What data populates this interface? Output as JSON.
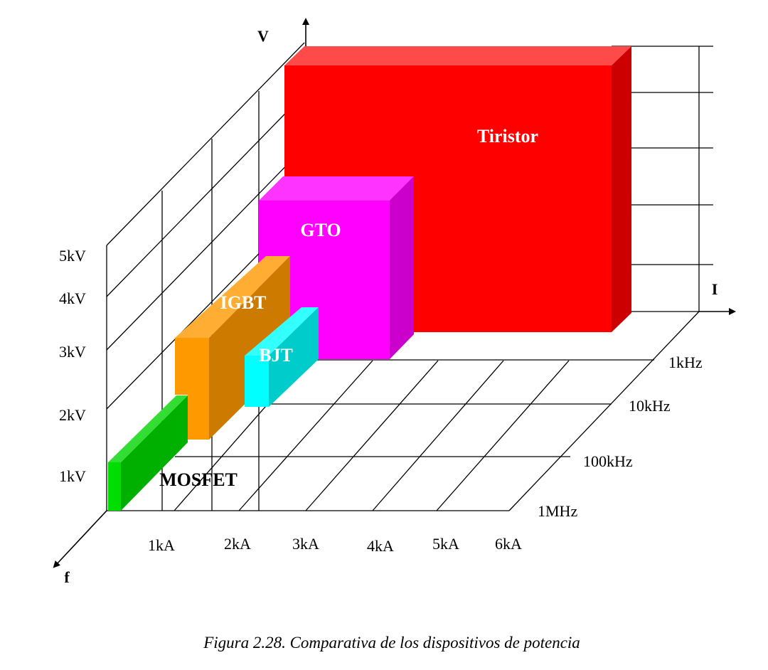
{
  "axes": {
    "v_label": "V",
    "i_label": "I",
    "f_label": "f"
  },
  "voltage_ticks": [
    "1kV",
    "2kV",
    "3kV",
    "4kV",
    "5kV"
  ],
  "current_ticks": [
    "1kA",
    "2kA",
    "3kA",
    "4kA",
    "5kA",
    "6kA"
  ],
  "frequency_ticks": [
    "1kHz",
    "10kHz",
    "100kHz",
    "1MHz"
  ],
  "devices": [
    {
      "name": "Tiristor",
      "color": "#ff0000",
      "label_color": "#ffffff"
    },
    {
      "name": "GTO",
      "color": "#ff00ff",
      "label_color": "#ffffff"
    },
    {
      "name": "IGBT",
      "color": "#ff9900",
      "label_color": "#ffffff"
    },
    {
      "name": "BJT",
      "color": "#00ffff",
      "label_color": "#ffffff"
    },
    {
      "name": "MOSFET",
      "color": "#00cc00",
      "label_color": "#000000"
    }
  ],
  "caption": "Figura 2.28. Comparativa de los dispositivos de potencia"
}
